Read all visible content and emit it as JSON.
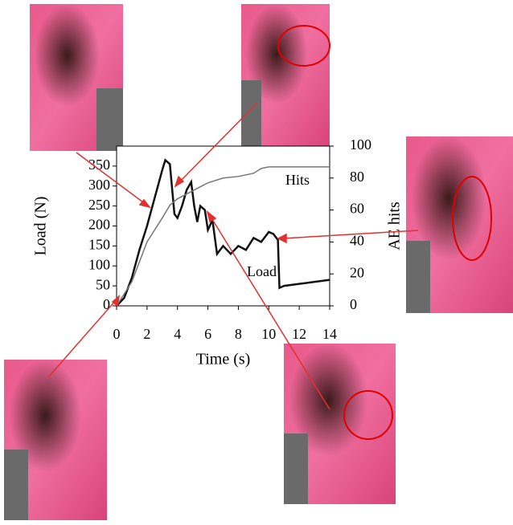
{
  "chart_data": {
    "type": "line",
    "x_label": "Time (s)",
    "y_label": "Load (N)",
    "y2_label": "AE hits",
    "xlim": [
      0,
      14
    ],
    "xticks": [
      0,
      2,
      4,
      6,
      8,
      10,
      12,
      14
    ],
    "ylim": [
      0,
      400
    ],
    "yticks": [
      0,
      50,
      100,
      150,
      200,
      250,
      300,
      350
    ],
    "y2lim": [
      0,
      100
    ],
    "y2ticks": [
      0,
      20,
      40,
      60,
      80,
      100
    ],
    "series": [
      {
        "name": "Load",
        "color": "#111111",
        "axis": "y",
        "x": [
          0,
          0.5,
          1,
          1.5,
          2,
          2.5,
          3,
          3.2,
          3.5,
          3.8,
          4,
          4.3,
          4.6,
          4.9,
          5.1,
          5.3,
          5.5,
          5.8,
          6,
          6.3,
          6.6,
          7,
          7.5,
          8,
          8.5,
          9,
          9.5,
          10,
          10.3,
          10.6,
          10.7,
          11,
          12,
          13,
          14
        ],
        "values": [
          0,
          20,
          70,
          140,
          200,
          270,
          340,
          365,
          355,
          230,
          220,
          250,
          290,
          310,
          250,
          210,
          250,
          240,
          190,
          215,
          130,
          150,
          130,
          150,
          140,
          170,
          160,
          185,
          180,
          165,
          45,
          50,
          55,
          60,
          65
        ]
      },
      {
        "name": "Hits",
        "color": "#777777",
        "axis": "y2",
        "x": [
          0,
          1,
          2,
          3,
          3.5,
          4,
          5,
          6,
          7,
          8,
          9,
          9.5,
          10,
          11,
          14
        ],
        "values": [
          0,
          15,
          40,
          55,
          63,
          67,
          72,
          77,
          80,
          81,
          83,
          86,
          87,
          87,
          87
        ]
      }
    ]
  }
}
